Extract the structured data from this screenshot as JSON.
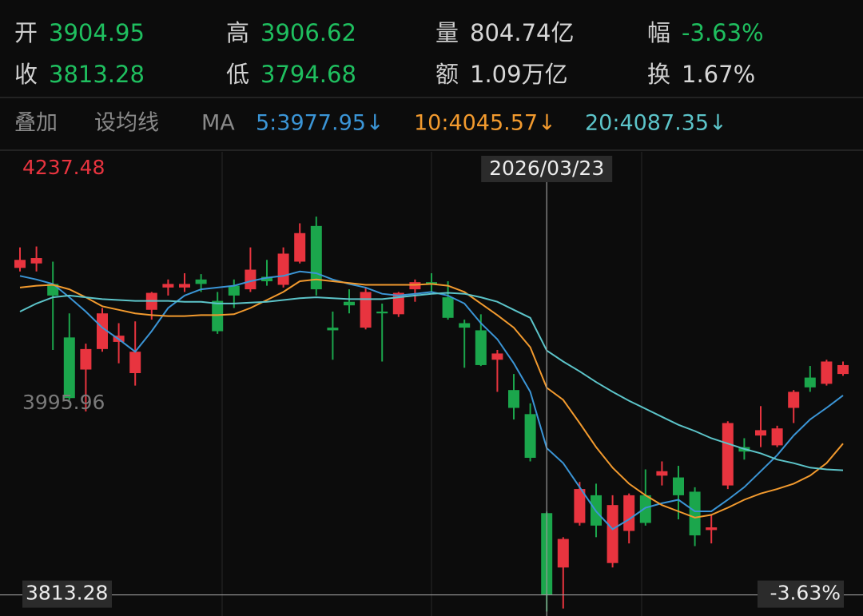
{
  "header": {
    "stats": [
      {
        "label": "开",
        "value": "3904.95",
        "color": "#1fbf5f"
      },
      {
        "label": "高",
        "value": "3906.62",
        "color": "#1fbf5f"
      },
      {
        "label": "量",
        "value": "804.74亿",
        "color": "#d6d6d6"
      },
      {
        "label": "幅",
        "value": "-3.63%",
        "color": "#1fbf5f"
      },
      {
        "label": "收",
        "value": "3813.28",
        "color": "#1fbf5f"
      },
      {
        "label": "低",
        "value": "3794.68",
        "color": "#1fbf5f"
      },
      {
        "label": "额",
        "value": "1.09万亿",
        "color": "#d6d6d6"
      },
      {
        "label": "换",
        "value": "1.67%",
        "color": "#d6d6d6"
      }
    ]
  },
  "toolbar": {
    "items": [
      "叠加",
      "设均线",
      "MA"
    ]
  },
  "chart_data": {
    "type": "candlestick",
    "up_color": "#e8343f",
    "down_color": "#1ba64c",
    "categories": [
      null,
      null,
      null,
      null,
      null,
      null,
      null,
      null,
      null,
      null,
      null,
      null,
      null,
      null,
      null,
      null,
      null,
      null,
      null,
      null,
      null,
      null,
      null,
      null,
      null,
      null,
      null,
      null,
      null,
      null,
      null,
      null,
      "2026/03/23",
      null,
      null,
      null,
      null,
      null,
      null,
      null,
      null,
      null,
      null,
      null,
      null,
      null,
      null,
      null,
      null,
      null,
      null
    ],
    "open": [
      4180,
      4185,
      4162,
      4102,
      4066,
      4089,
      4097,
      4062,
      4133,
      4158,
      4158,
      4167,
      4143,
      4160,
      4156,
      4170,
      4161,
      4187,
      4227,
      4113,
      4142,
      4113,
      4131,
      4128,
      4156,
      4164,
      4147,
      4118,
      4110,
      4077,
      4043,
      4016,
      3904.95,
      3844,
      3894,
      3925,
      3849,
      3885,
      3925,
      3947,
      3945,
      3929,
      3886,
      3936,
      3979,
      3992,
      3981,
      4023,
      4057,
      4050,
      4061
    ],
    "high": [
      4203,
      4204,
      4187,
      4129,
      4095,
      4135,
      4118,
      4120,
      4153,
      4167,
      4174,
      4173,
      4153,
      4167,
      4203,
      4189,
      4203,
      4230,
      4237.48,
      4131,
      4156,
      4158,
      4140,
      4153,
      4167,
      4174,
      4165,
      4122,
      4128,
      4088,
      4061,
      4028,
      3906.62,
      3878,
      3940,
      3938,
      3925,
      3927,
      3954,
      3963,
      3958,
      3934,
      3903,
      4008,
      3989,
      4025,
      4003,
      4043,
      4070,
      4077,
      4075
    ],
    "low": [
      4176,
      4176,
      4088,
      4032,
      4019,
      4086,
      4073,
      4048,
      4122,
      4149,
      4153,
      4153,
      4106,
      4135,
      4153,
      4160,
      4158,
      4185,
      4149,
      4077,
      4129,
      4111,
      4075,
      4125,
      4142,
      4153,
      4122,
      4068,
      4070,
      4041,
      4010,
      3963,
      3794.68,
      3798,
      3891,
      3878,
      3844,
      3871,
      3891,
      3936,
      3898,
      3868,
      3871,
      3932,
      3965,
      3979,
      3979,
      4006,
      4041,
      4048,
      4059
    ],
    "close": [
      4189,
      4191,
      4149,
      4034,
      4089,
      4129,
      4104,
      4086,
      4152,
      4162,
      4162,
      4162,
      4109,
      4149,
      4178,
      4165,
      4196,
      4219,
      4156,
      4110,
      4138,
      4153,
      4129,
      4152,
      4164,
      4161,
      4124,
      4113,
      4071,
      4084,
      4023,
      3967,
      3813.28,
      3876,
      3932,
      3891,
      3914,
      3925,
      3894,
      3952,
      3925,
      3880,
      3889,
      4006,
      3974,
      3998,
      4000,
      4041,
      4046,
      4075,
      4071
    ],
    "series": [
      {
        "name": "5:3977.95↓",
        "color": "#3b95d6",
        "values": [
          4171,
          4167,
          4162,
          4147,
          4131,
          4113,
          4100,
          4086,
          4109,
          4135,
          4149,
          4156,
          4158,
          4160,
          4165,
          4169,
          4171,
          4176,
          4174,
          4167,
          4162,
          4158,
          4151,
          4149,
          4151,
          4153,
          4149,
          4140,
          4118,
          4100,
          4073,
          4041,
          3977.95,
          3961,
          3934,
          3907,
          3887,
          3898,
          3911,
          3916,
          3920,
          3907,
          3907,
          3920,
          3934,
          3952,
          3970,
          3992,
          4010,
          4023,
          4037
        ]
      },
      {
        "name": "10:4045.57↓",
        "color": "#f29a2e",
        "values": [
          4158,
          4160,
          4161,
          4156,
          4147,
          4137,
          4133,
          4129,
          4127,
          4126,
          4126,
          4127,
          4127,
          4128,
          4135,
          4144,
          4153,
          4165,
          4167,
          4165,
          4163,
          4161,
          4161,
          4161,
          4161,
          4162,
          4160,
          4153,
          4140,
          4127,
          4113,
          4091,
          4045.57,
          4032,
          4006,
          3979,
          3956,
          3938,
          3925,
          3914,
          3907,
          3900,
          3903,
          3911,
          3920,
          3927,
          3932,
          3938,
          3947,
          3961,
          3983
        ]
      },
      {
        "name": "20:4087.35↓",
        "color": "#5cc4c9",
        "values": [
          4131,
          4140,
          4147,
          4149,
          4147,
          4145,
          4144,
          4143,
          4143,
          4143,
          4142,
          4142,
          4140,
          4140,
          4141,
          4142,
          4144,
          4146,
          4147,
          4146,
          4145,
          4145,
          4145,
          4147,
          4149,
          4151,
          4152,
          4151,
          4147,
          4142,
          4133,
          4124,
          4087.35,
          4075,
          4064,
          4052,
          4041,
          4031,
          4022,
          4013,
          4004,
          3997,
          3989,
          3983,
          3977,
          3972,
          3965,
          3961,
          3956,
          3954,
          3953
        ]
      }
    ],
    "ylim": [
      3789.6,
      4308.4
    ],
    "high_label": "4237.48",
    "mid_label": "3995.96",
    "crosshair_price_label": "3813.28",
    "crosshair_change_label": "-3.63%"
  }
}
